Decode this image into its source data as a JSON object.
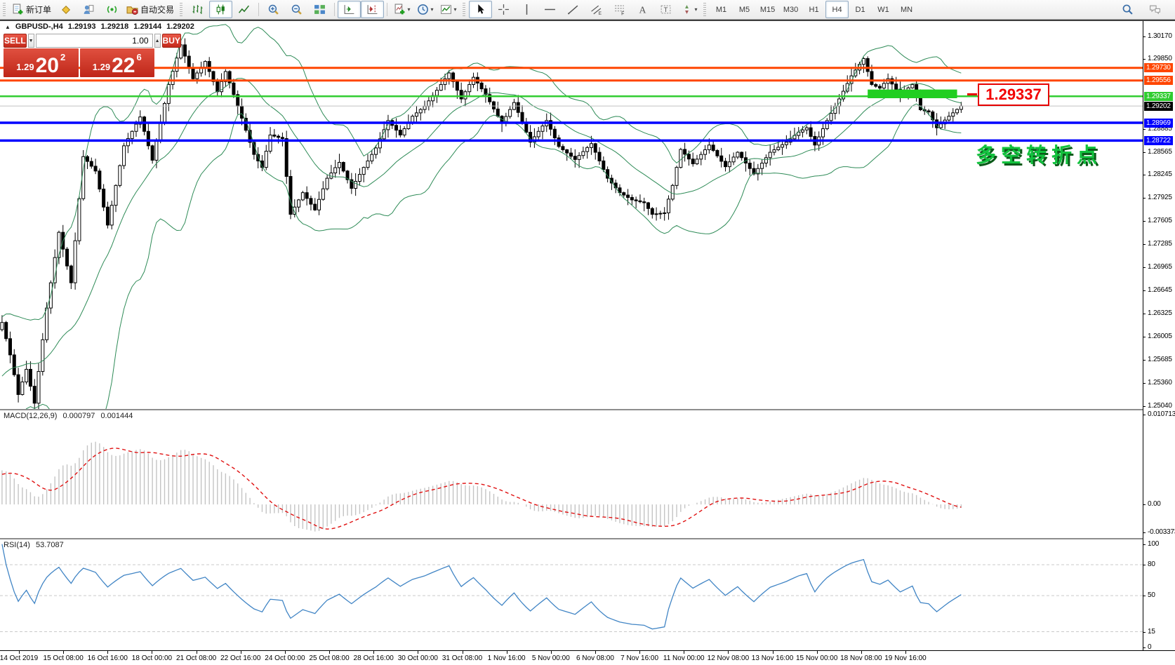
{
  "toolbar": {
    "groups": [
      {
        "lead": "grip",
        "items": [
          {
            "name": "new-order-button",
            "icon": "new-order",
            "label": "新订单"
          },
          {
            "name": "market-watch-button",
            "icon": "market-watch"
          },
          {
            "name": "data-window-button",
            "icon": "data-window"
          },
          {
            "name": "signals-button",
            "icon": "signals"
          },
          {
            "name": "auto-trading-button",
            "icon": "auto-trading",
            "label": "自动交易"
          }
        ]
      },
      {
        "lead": "grip",
        "items": [
          {
            "name": "bar-chart-button",
            "icon": "bars"
          },
          {
            "name": "candlestick-chart-button",
            "icon": "candles",
            "active": true
          },
          {
            "name": "line-chart-button",
            "icon": "line-chart"
          }
        ]
      },
      {
        "lead": "sep",
        "items": [
          {
            "name": "zoom-in-button",
            "icon": "zoom-in"
          },
          {
            "name": "zoom-out-button",
            "icon": "zoom-out"
          },
          {
            "name": "tile-windows-button",
            "icon": "tile-windows"
          }
        ]
      },
      {
        "lead": "sep",
        "items": [
          {
            "name": "auto-scroll-button",
            "icon": "auto-scroll",
            "active": true
          },
          {
            "name": "chart-shift-button",
            "icon": "chart-shift",
            "active": true
          }
        ]
      },
      {
        "lead": "sep",
        "items": [
          {
            "name": "add-indicator-button",
            "icon": "add-indicator",
            "dropdown": true
          },
          {
            "name": "periods-button",
            "icon": "periods-clock",
            "dropdown": true
          },
          {
            "name": "templates-button",
            "icon": "templates",
            "dropdown": true
          }
        ]
      },
      {
        "lead": "grip",
        "items": [
          {
            "name": "cursor-tool-button",
            "icon": "cursor",
            "active": true
          },
          {
            "name": "crosshair-tool-button",
            "icon": "crosshair"
          },
          {
            "name": "vertical-line-tool-button",
            "icon": "vline"
          },
          {
            "name": "horizontal-line-tool-button",
            "icon": "hline"
          },
          {
            "name": "trendline-tool-button",
            "icon": "trendline"
          },
          {
            "name": "channel-tool-button",
            "icon": "channel"
          },
          {
            "name": "fibonacci-tool-button",
            "icon": "fibo"
          },
          {
            "name": "text-tool-button",
            "icon": "text-a"
          },
          {
            "name": "label-tool-button",
            "icon": "text-label"
          },
          {
            "name": "arrows-tool-button",
            "icon": "arrows-tool",
            "dropdown": true
          }
        ]
      },
      {
        "lead": "grip",
        "items": [
          {
            "name": "timeframe-m1",
            "label": "M1"
          },
          {
            "name": "timeframe-m5",
            "label": "M5"
          },
          {
            "name": "timeframe-m15",
            "label": "M15"
          },
          {
            "name": "timeframe-m30",
            "label": "M30"
          },
          {
            "name": "timeframe-h1",
            "label": "H1"
          },
          {
            "name": "timeframe-h4",
            "label": "H4",
            "active": true
          },
          {
            "name": "timeframe-d1",
            "label": "D1"
          },
          {
            "name": "timeframe-w1",
            "label": "W1"
          },
          {
            "name": "timeframe-mn",
            "label": "MN"
          }
        ]
      }
    ],
    "right_items": [
      {
        "name": "search-button",
        "icon": "search"
      },
      {
        "name": "chat-button",
        "icon": "chat"
      }
    ]
  },
  "symbol_bar": {
    "collapse": "▲",
    "title": "GBPUSD-,H4",
    "open": "1.29193",
    "high": "1.29218",
    "low": "1.29144",
    "close": "1.29202"
  },
  "trade_panel": {
    "sell_label": "SELL",
    "buy_label": "BUY",
    "volume": "1.00",
    "spin_down": "▼",
    "spin_up": "▲",
    "sell_small": "1.29",
    "sell_big": "20",
    "sell_sup": "2",
    "buy_small": "1.29",
    "buy_big": "22",
    "buy_sup": "6"
  },
  "overlays": {
    "price_callout": "1.29337",
    "turning_point_text": "多空转折点"
  },
  "price_axis": {
    "plain_ticks": [
      "1.30170",
      "1.29850",
      "1.28885",
      "1.28565",
      "1.28245",
      "1.27925",
      "1.27605",
      "1.27285",
      "1.26965",
      "1.26645",
      "1.26325",
      "1.26005",
      "1.25685",
      "1.25360",
      "1.25040"
    ],
    "tagged": [
      {
        "label": "1.29730",
        "price": 1.2973,
        "bg": "#FF4500"
      },
      {
        "label": "1.29556",
        "price": 1.29556,
        "bg": "#FF4500"
      },
      {
        "label": "1.29337",
        "price": 1.29337,
        "bg": "#2FCC2F"
      },
      {
        "label": "1.29202",
        "price": 1.29202,
        "bg": "#000000"
      },
      {
        "label": "1.28969",
        "price": 1.28969,
        "bg": "#0000FF"
      },
      {
        "label": "1.28722",
        "price": 1.28722,
        "bg": "#0000FF"
      }
    ]
  },
  "time_axis": {
    "labels": [
      "14 Oct 2019",
      "15 Oct 08:00",
      "16 Oct 16:00",
      "18 Oct 00:00",
      "21 Oct 08:00",
      "22 Oct 16:00",
      "24 Oct 00:00",
      "25 Oct 08:00",
      "28 Oct 16:00",
      "30 Oct 00:00",
      "31 Oct 08:00",
      "1 Nov 16:00",
      "5 Nov 00:00",
      "6 Nov 08:00",
      "7 Nov 16:00",
      "11 Nov 00:00",
      "12 Nov 08:00",
      "13 Nov 16:00",
      "15 Nov 00:00",
      "18 Nov 08:00",
      "19 Nov 16:00"
    ]
  },
  "chart_data": {
    "type": "candlestick",
    "symbol": "GBPUSD-",
    "timeframe": "H4",
    "visible_range": {
      "price_top": 1.3038,
      "price_bottom": 1.25
    },
    "candles_total": 237,
    "candle_colors": {
      "bull": "#FFFFFF",
      "bear": "#000000",
      "outline": "#000000"
    },
    "pre_history_path": [
      [
        -40,
        1.238
      ],
      [
        -25,
        1.246
      ],
      [
        -12,
        1.252
      ],
      [
        -1,
        1.261
      ]
    ],
    "price_path": [
      [
        0,
        1.262
      ],
      [
        2,
        1.2575
      ],
      [
        4,
        1.252
      ],
      [
        6,
        1.2555
      ],
      [
        8,
        1.2508
      ],
      [
        11,
        1.264
      ],
      [
        14,
        1.2745
      ],
      [
        17,
        1.2675
      ],
      [
        20,
        1.285
      ],
      [
        23,
        1.283
      ],
      [
        26,
        1.2755
      ],
      [
        30,
        1.2865
      ],
      [
        34,
        1.2905
      ],
      [
        37,
        1.2845
      ],
      [
        41,
        1.295
      ],
      [
        44,
        1.3005
      ],
      [
        47,
        1.2958
      ],
      [
        50,
        1.2982
      ],
      [
        53,
        1.294
      ],
      [
        55,
        1.2968
      ],
      [
        58,
        1.292
      ],
      [
        62,
        1.2853
      ],
      [
        64,
        1.2835
      ],
      [
        66,
        1.288
      ],
      [
        69,
        1.2875
      ],
      [
        71,
        1.277
      ],
      [
        74,
        1.28
      ],
      [
        77,
        1.2776
      ],
      [
        80,
        1.282
      ],
      [
        83,
        1.2842
      ],
      [
        86,
        1.2806
      ],
      [
        89,
        1.2835
      ],
      [
        92,
        1.2862
      ],
      [
        95,
        1.29
      ],
      [
        98,
        1.288
      ],
      [
        101,
        1.2906
      ],
      [
        104,
        1.292
      ],
      [
        107,
        1.2942
      ],
      [
        110,
        1.2966
      ],
      [
        113,
        1.293
      ],
      [
        116,
        1.296
      ],
      [
        119,
        1.2936
      ],
      [
        123,
        1.2896
      ],
      [
        126,
        1.2925
      ],
      [
        130,
        1.287
      ],
      [
        134,
        1.29
      ],
      [
        137,
        1.2864
      ],
      [
        141,
        1.2846
      ],
      [
        145,
        1.2868
      ],
      [
        149,
        1.282
      ],
      [
        152,
        1.28
      ],
      [
        155,
        1.279
      ],
      [
        158,
        1.2786
      ],
      [
        160,
        1.277
      ],
      [
        163,
        1.2772
      ],
      [
        165,
        1.281
      ],
      [
        167,
        1.286
      ],
      [
        170,
        1.284
      ],
      [
        174,
        1.2866
      ],
      [
        178,
        1.2836
      ],
      [
        181,
        1.2856
      ],
      [
        185,
        1.2826
      ],
      [
        189,
        1.2856
      ],
      [
        193,
        1.287
      ],
      [
        196,
        1.2884
      ],
      [
        198,
        1.289
      ],
      [
        200,
        1.2866
      ],
      [
        203,
        1.29
      ],
      [
        206,
        1.293
      ],
      [
        209,
        1.2962
      ],
      [
        212,
        1.2986
      ],
      [
        214,
        1.295
      ],
      [
        216,
        1.2945
      ],
      [
        218,
        1.2958
      ],
      [
        221,
        1.2936
      ],
      [
        224,
        1.295
      ],
      [
        226,
        1.2915
      ],
      [
        228,
        1.2912
      ],
      [
        230,
        1.289
      ],
      [
        233,
        1.2906
      ],
      [
        236,
        1.29202
      ]
    ],
    "levels": [
      {
        "price": 1.2973,
        "color": "#FF4500",
        "width": 3
      },
      {
        "price": 1.29556,
        "color": "#FF4500",
        "width": 3
      },
      {
        "price": 1.29337,
        "color": "#32CD32",
        "width": 2.5
      },
      {
        "price": 1.29202,
        "color": "#C0C0C0",
        "width": 1
      },
      {
        "price": 1.28969,
        "color": "#0000FF",
        "width": 3.5
      },
      {
        "price": 1.28722,
        "color": "#0000FF",
        "width": 3.5
      }
    ],
    "highlight_bar": {
      "price_top": 1.2943,
      "price_bottom": 1.2931,
      "from_candle": 213,
      "to_candle": 235,
      "color": "#21CE21"
    },
    "bollinger": {
      "period": 20,
      "deviations": 2,
      "color": "#2E8B57"
    },
    "macd": {
      "label": "MACD(12,26,9)",
      "value_main": "0.000797",
      "value_signal": "0.001444",
      "scale_max": "0.010713",
      "scale_zero": "0.00",
      "scale_min": "-0.003373",
      "histogram_color": "#C4C4C4",
      "signal_color": "#E01010",
      "range": {
        "top": 0.0112,
        "bottom": -0.004
      }
    },
    "rsi": {
      "label": "RSI(14)",
      "value": "53.7087",
      "color": "#4185C5",
      "levels": [
        80,
        50,
        15
      ],
      "scale_ticks": [
        "100",
        "80",
        "50",
        "15",
        "0"
      ],
      "range": {
        "top": 104.5,
        "bottom": -3.0
      }
    }
  }
}
